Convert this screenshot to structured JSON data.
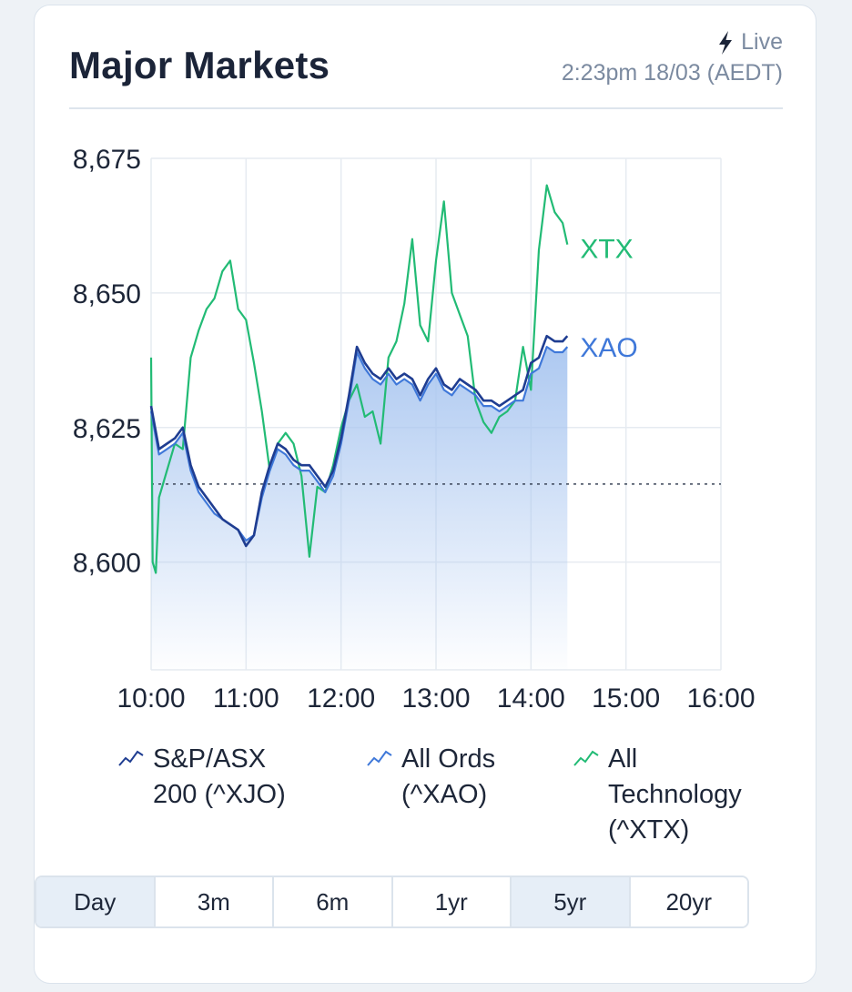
{
  "header": {
    "title": "Major Markets",
    "live_label": "Live",
    "timestamp": "2:23pm 18/03 (AEDT)"
  },
  "chart_data": {
    "type": "line",
    "y_ticks": [
      "8,675",
      "8,650",
      "8,625",
      "8,600"
    ],
    "x_ticks": [
      "10:00",
      "11:00",
      "12:00",
      "13:00",
      "14:00",
      "15:00",
      "16:00"
    ],
    "ylim": [
      8580,
      8675
    ],
    "x_range": [
      "10:00",
      "16:00"
    ],
    "reference_line": 8614.5,
    "grid": true,
    "series": [
      {
        "name": "S&P/ASX 200 (^XJO)",
        "color": "#1f3d91",
        "x": [
          "10:00",
          "10:05",
          "10:10",
          "10:15",
          "10:20",
          "10:25",
          "10:30",
          "10:35",
          "10:40",
          "10:45",
          "10:50",
          "10:55",
          "11:00",
          "11:05",
          "11:10",
          "11:15",
          "11:20",
          "11:25",
          "11:30",
          "11:35",
          "11:40",
          "11:45",
          "11:50",
          "11:55",
          "12:00",
          "12:05",
          "12:10",
          "12:15",
          "12:20",
          "12:25",
          "12:30",
          "12:35",
          "12:40",
          "12:45",
          "12:50",
          "12:55",
          "13:00",
          "13:05",
          "13:10",
          "13:15",
          "13:20",
          "13:25",
          "13:30",
          "13:35",
          "13:40",
          "13:45",
          "13:50",
          "13:55",
          "14:00",
          "14:05",
          "14:10",
          "14:15",
          "14:20",
          "14:23"
        ],
        "y": [
          8629,
          8621,
          8622,
          8623,
          8625,
          8618,
          8614,
          8612,
          8610,
          8608,
          8607,
          8606,
          8603,
          8605,
          8613,
          8618,
          8622,
          8621,
          8619,
          8618,
          8618,
          8616,
          8614,
          8617,
          8623,
          8631,
          8640,
          8637,
          8635,
          8634,
          8636,
          8634,
          8635,
          8634,
          8631,
          8634,
          8636,
          8633,
          8632,
          8634,
          8633,
          8632,
          8630,
          8630,
          8629,
          8630,
          8631,
          8632,
          8637,
          8638,
          8642,
          8641,
          8641,
          8642
        ]
      },
      {
        "name": "All Ords (^XAO)",
        "label": "XAO",
        "color": "#3f78d9",
        "x": [
          "10:00",
          "10:05",
          "10:10",
          "10:15",
          "10:20",
          "10:25",
          "10:30",
          "10:35",
          "10:40",
          "10:45",
          "10:50",
          "10:55",
          "11:00",
          "11:05",
          "11:10",
          "11:15",
          "11:20",
          "11:25",
          "11:30",
          "11:35",
          "11:40",
          "11:45",
          "11:50",
          "11:55",
          "12:00",
          "12:05",
          "12:10",
          "12:15",
          "12:20",
          "12:25",
          "12:30",
          "12:35",
          "12:40",
          "12:45",
          "12:50",
          "12:55",
          "13:00",
          "13:05",
          "13:10",
          "13:15",
          "13:20",
          "13:25",
          "13:30",
          "13:35",
          "13:40",
          "13:45",
          "13:50",
          "13:55",
          "14:00",
          "14:05",
          "14:10",
          "14:15",
          "14:20",
          "14:23"
        ],
        "y": [
          8628,
          8620,
          8621,
          8622,
          8624,
          8617,
          8613,
          8611,
          8609,
          8608,
          8607,
          8606,
          8604,
          8605,
          8612,
          8617,
          8621,
          8620,
          8618,
          8617,
          8617,
          8615,
          8613,
          8616,
          8622,
          8630,
          8639,
          8636,
          8634,
          8633,
          8635,
          8633,
          8634,
          8633,
          8630,
          8633,
          8635,
          8632,
          8631,
          8633,
          8632,
          8631,
          8629,
          8629,
          8628,
          8629,
          8630,
          8630,
          8635,
          8636,
          8640,
          8639,
          8639,
          8640
        ]
      },
      {
        "name": "All Technology (^XTX)",
        "label": "XTX",
        "color": "#22bb75",
        "x": [
          "10:00",
          "10:01",
          "10:03",
          "10:05",
          "10:10",
          "10:15",
          "10:20",
          "10:25",
          "10:30",
          "10:35",
          "10:40",
          "10:45",
          "10:50",
          "10:55",
          "11:00",
          "11:05",
          "11:10",
          "11:15",
          "11:20",
          "11:25",
          "11:30",
          "11:35",
          "11:40",
          "11:45",
          "11:50",
          "11:55",
          "12:00",
          "12:05",
          "12:10",
          "12:15",
          "12:20",
          "12:25",
          "12:30",
          "12:35",
          "12:40",
          "12:45",
          "12:50",
          "12:55",
          "13:00",
          "13:05",
          "13:10",
          "13:15",
          "13:20",
          "13:25",
          "13:30",
          "13:35",
          "13:40",
          "13:45",
          "13:50",
          "13:55",
          "14:00",
          "14:05",
          "14:10",
          "14:15",
          "14:20",
          "14:23"
        ],
        "y": [
          8638,
          8600,
          8598,
          8612,
          8617,
          8622,
          8621,
          8638,
          8643,
          8647,
          8649,
          8654,
          8656,
          8647,
          8645,
          8637,
          8628,
          8617,
          8622,
          8624,
          8622,
          8616,
          8601,
          8614,
          8613,
          8618,
          8625,
          8630,
          8633,
          8627,
          8628,
          8622,
          8638,
          8641,
          8648,
          8660,
          8644,
          8641,
          8656,
          8667,
          8650,
          8646,
          8642,
          8630,
          8626,
          8624,
          8627,
          8628,
          8630,
          8640,
          8632,
          8658,
          8670,
          8665,
          8663,
          8659
        ]
      }
    ]
  },
  "legend": [
    {
      "label": "S&P/ASX 200 (^XJO)",
      "text": "S&P/ASX\n200 (^XJO)",
      "color": "#1f3d91",
      "icon": "line-trend-icon"
    },
    {
      "label": "All Ords (^XAO)",
      "text": "All Ords\n(^XAO)",
      "color": "#3f78d9",
      "icon": "line-trend-icon"
    },
    {
      "label": "All Technology (^XTX)",
      "text": "All\nTechnology\n(^XTX)",
      "color": "#22bb75",
      "icon": "line-trend-icon"
    }
  ],
  "ranges": {
    "options": [
      "Day",
      "3m",
      "6m",
      "1yr",
      "5yr",
      "20yr"
    ],
    "selected": "Day"
  },
  "icons": {
    "live": "lightning-bolt-icon"
  },
  "colors": {
    "accent": "#22bb75",
    "fill": "#a9c6f0",
    "grid": "#e8edf2"
  }
}
